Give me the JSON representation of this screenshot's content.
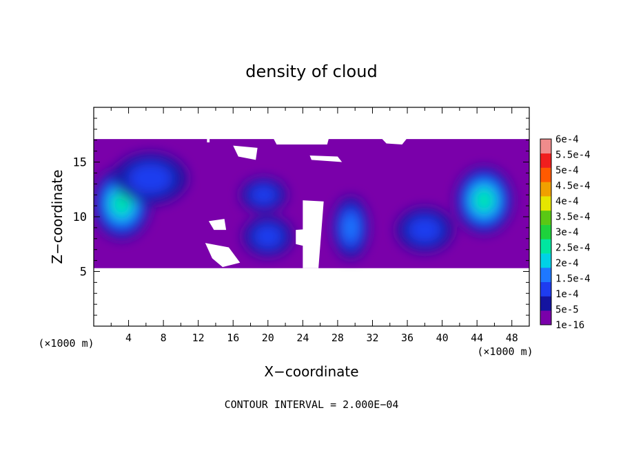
{
  "chart_data": {
    "type": "heatmap",
    "title": "density of cloud",
    "xlabel": "X−coordinate",
    "ylabel": "Z−coordinate",
    "x_unit_label": "(×1000 m)",
    "y_unit_label": "(×1000 m)",
    "xlim": [
      0,
      50
    ],
    "ylim": [
      0,
      20
    ],
    "x_ticks": [
      "4",
      "8",
      "12",
      "16",
      "20",
      "24",
      "28",
      "32",
      "36",
      "40",
      "44",
      "48"
    ],
    "y_ticks": [
      "5",
      "10",
      "15"
    ],
    "footer": "CONTOUR INTERVAL = 2.000E−04",
    "colorbar": {
      "labels": [
        "1e-16",
        "5e-5",
        "1e-4",
        "1.5e-4",
        "2e-4",
        "2.5e-4",
        "3e-4",
        "3.5e-4",
        "4e-4",
        "4.5e-4",
        "5e-4",
        "5.5e-4",
        "6e-4"
      ],
      "colors": [
        "#7a00aa",
        "#1414a0",
        "#1e3cf0",
        "#1e78ff",
        "#00d2e6",
        "#00e6a0",
        "#1ed23c",
        "#5ac814",
        "#e6e600",
        "#f0a000",
        "#ff5a00",
        "#f01e1e",
        "#f08c8c"
      ]
    },
    "cloud_layer_z": [
      5.3,
      17.1
    ],
    "blobs": [
      {
        "x": 3.2,
        "z": 11.2,
        "rx": 3.2,
        "rz": 3.2,
        "level": 5
      },
      {
        "x": 44.8,
        "z": 11.5,
        "rx": 3.2,
        "rz": 3.0,
        "level": 5
      },
      {
        "x": 20.0,
        "z": 8.2,
        "rx": 2.8,
        "rz": 1.8,
        "level": 2
      },
      {
        "x": 19.5,
        "z": 12.0,
        "rx": 2.6,
        "rz": 1.5,
        "level": 2
      },
      {
        "x": 29.5,
        "z": 9.0,
        "rx": 2.0,
        "rz": 2.8,
        "level": 3
      },
      {
        "x": 38.0,
        "z": 8.8,
        "rx": 3.2,
        "rz": 2.0,
        "level": 2
      },
      {
        "x": 6.5,
        "z": 13.5,
        "rx": 4.2,
        "rz": 2.3,
        "level": 2
      }
    ]
  }
}
